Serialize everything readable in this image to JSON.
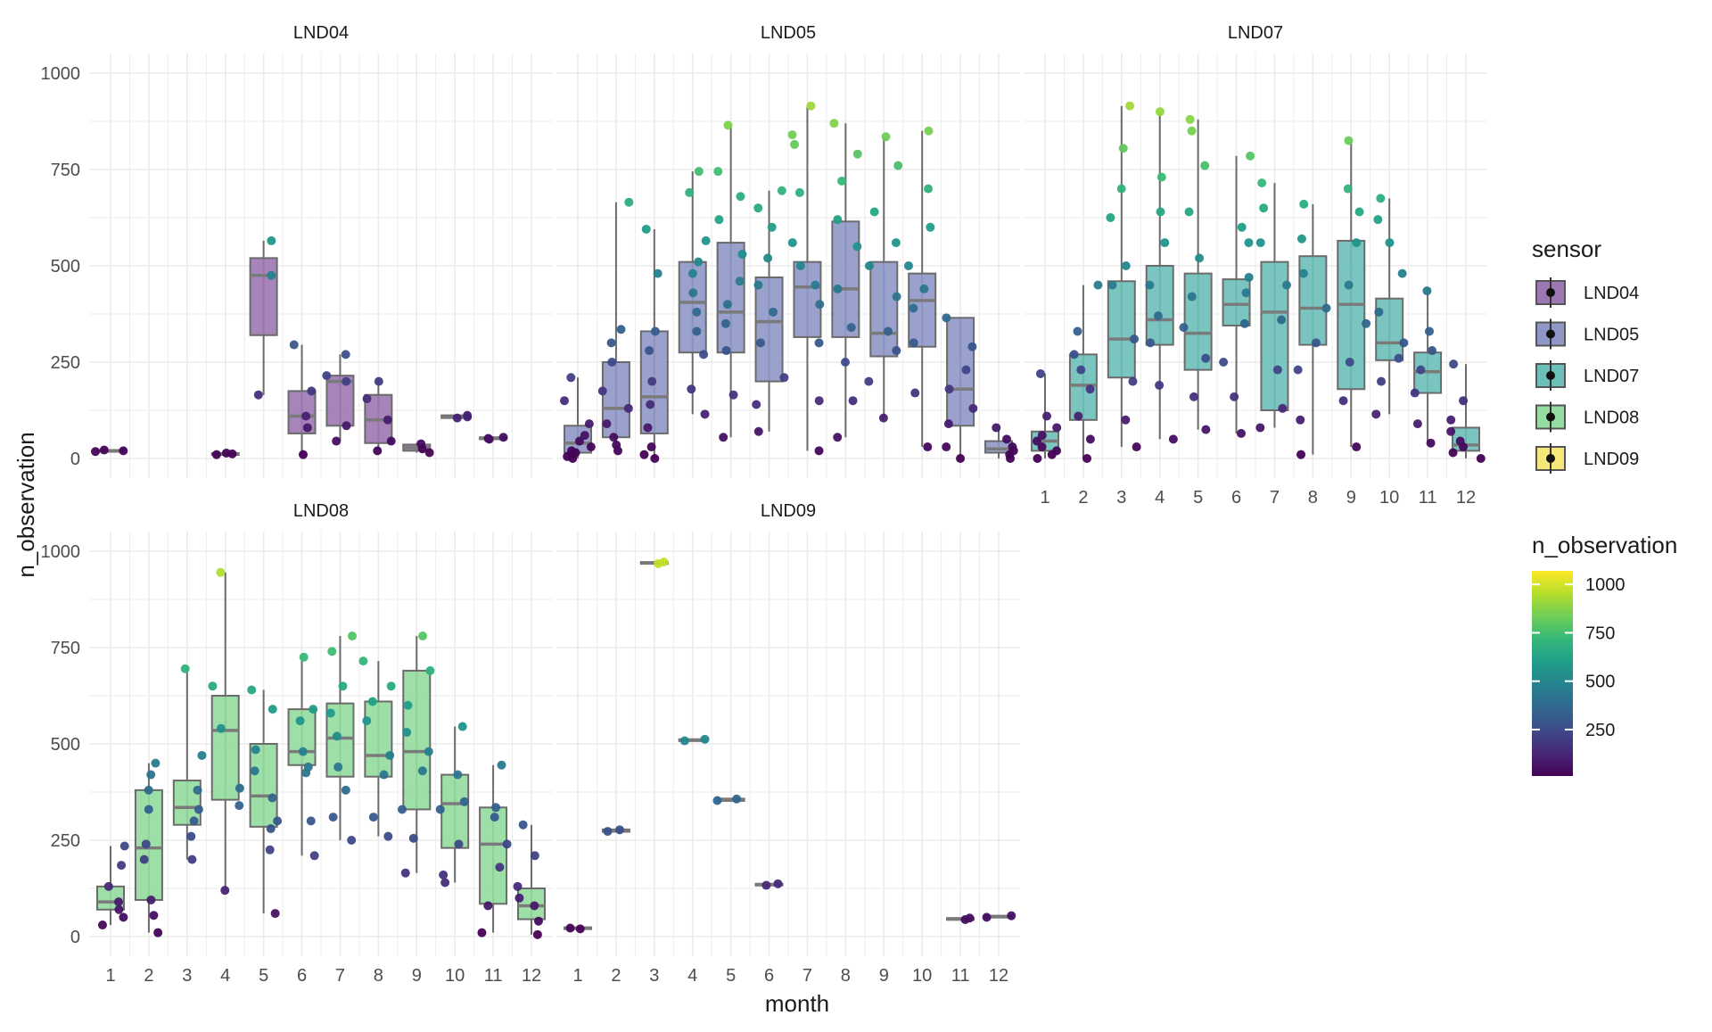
{
  "chart_data": {
    "type": "box",
    "xlabel": "month",
    "ylabel": "n_observation",
    "categories": [
      "1",
      "2",
      "3",
      "4",
      "5",
      "6",
      "7",
      "8",
      "9",
      "10",
      "11",
      "12"
    ],
    "ylim": [
      0,
      1000
    ],
    "yticks": [
      0,
      250,
      500,
      750,
      1000
    ],
    "legend_sensor": {
      "title": "sensor",
      "items": [
        {
          "name": "LND04",
          "color": "#9d77b3"
        },
        {
          "name": "LND05",
          "color": "#8e97c6"
        },
        {
          "name": "LND07",
          "color": "#6cbfb8"
        },
        {
          "name": "LND08",
          "color": "#94dc9f"
        },
        {
          "name": "LND09",
          "color": "#f5e77a"
        }
      ]
    },
    "legend_color": {
      "title": "n_observation",
      "ticks": [
        250,
        500,
        750,
        1000
      ],
      "min": 10,
      "max": 1070,
      "colors": [
        "#440154",
        "#482878",
        "#3e4a89",
        "#31688e",
        "#26828e",
        "#1f9e89",
        "#35b779",
        "#6ece58",
        "#b5de2b",
        "#fde725"
      ]
    },
    "panels": [
      {
        "sensor": "LND04",
        "boxes": [
          {
            "month": 1,
            "q1": 18,
            "median": 20,
            "q3": 22,
            "lo": 18,
            "hi": 22,
            "points": [
              18,
              20,
              22
            ]
          },
          {
            "month": 4,
            "q1": 10,
            "median": 12,
            "q3": 14,
            "lo": 10,
            "hi": 14,
            "points": [
              10,
              12,
              14
            ]
          },
          {
            "month": 5,
            "q1": 320,
            "median": 475,
            "q3": 520,
            "lo": 165,
            "hi": 565,
            "points": [
              165,
              475,
              565
            ]
          },
          {
            "month": 6,
            "q1": 65,
            "median": 110,
            "q3": 175,
            "lo": 10,
            "hi": 295,
            "points": [
              10,
              80,
              110,
              175,
              295
            ]
          },
          {
            "month": 7,
            "q1": 85,
            "median": 200,
            "q3": 215,
            "lo": 45,
            "hi": 270,
            "points": [
              45,
              85,
              200,
              215,
              270
            ]
          },
          {
            "month": 8,
            "q1": 40,
            "median": 100,
            "q3": 165,
            "lo": 20,
            "hi": 200,
            "points": [
              20,
              45,
              100,
              155,
              200
            ]
          },
          {
            "month": 9,
            "q1": 20,
            "median": 28,
            "q3": 36,
            "lo": 15,
            "hi": 40,
            "points": [
              15,
              25,
              38
            ]
          },
          {
            "month": 10,
            "q1": 105,
            "median": 108,
            "q3": 112,
            "lo": 105,
            "hi": 112,
            "points": [
              105,
              108,
              112
            ]
          },
          {
            "month": 11,
            "q1": 50,
            "median": 52,
            "q3": 55,
            "lo": 50,
            "hi": 55,
            "points": [
              50,
              52,
              55
            ]
          }
        ]
      },
      {
        "sensor": "LND05",
        "boxes": [
          {
            "month": 1,
            "q1": 15,
            "median": 40,
            "q3": 85,
            "lo": 0,
            "hi": 210,
            "points": [
              0,
              5,
              10,
              15,
              20,
              30,
              45,
              60,
              90,
              150,
              210
            ]
          },
          {
            "month": 2,
            "q1": 55,
            "median": 130,
            "q3": 250,
            "lo": 20,
            "hi": 665,
            "points": [
              20,
              35,
              55,
              90,
              130,
              175,
              250,
              300,
              335,
              665
            ]
          },
          {
            "month": 3,
            "q1": 65,
            "median": 160,
            "q3": 330,
            "lo": 0,
            "hi": 595,
            "points": [
              0,
              10,
              30,
              80,
              140,
              200,
              280,
              330,
              480,
              595
            ]
          },
          {
            "month": 4,
            "q1": 275,
            "median": 405,
            "q3": 510,
            "lo": 115,
            "hi": 745,
            "points": [
              115,
              180,
              270,
              330,
              380,
              430,
              480,
              510,
              565,
              690,
              745
            ]
          },
          {
            "month": 5,
            "q1": 275,
            "median": 380,
            "q3": 560,
            "lo": 55,
            "hi": 865,
            "points": [
              55,
              165,
              280,
              350,
              400,
              460,
              530,
              620,
              680,
              745,
              865
            ]
          },
          {
            "month": 6,
            "q1": 200,
            "median": 355,
            "q3": 470,
            "lo": 70,
            "hi": 695,
            "points": [
              70,
              140,
              210,
              300,
              380,
              450,
              520,
              600,
              650,
              695
            ]
          },
          {
            "month": 7,
            "q1": 315,
            "median": 445,
            "q3": 510,
            "lo": 20,
            "hi": 915,
            "points": [
              20,
              150,
              300,
              400,
              450,
              500,
              560,
              690,
              815,
              840,
              915
            ]
          },
          {
            "month": 8,
            "q1": 315,
            "median": 440,
            "q3": 615,
            "lo": 55,
            "hi": 870,
            "points": [
              55,
              150,
              250,
              340,
              440,
              550,
              620,
              720,
              790,
              870
            ]
          },
          {
            "month": 9,
            "q1": 265,
            "median": 325,
            "q3": 510,
            "lo": 105,
            "hi": 835,
            "points": [
              105,
              200,
              280,
              330,
              420,
              500,
              560,
              640,
              760,
              835
            ]
          },
          {
            "month": 10,
            "q1": 290,
            "median": 410,
            "q3": 480,
            "lo": 30,
            "hi": 850,
            "points": [
              30,
              170,
              300,
              390,
              440,
              500,
              600,
              700,
              850
            ]
          },
          {
            "month": 11,
            "q1": 85,
            "median": 180,
            "q3": 365,
            "lo": 0,
            "hi": 365,
            "points": [
              0,
              30,
              90,
              130,
              180,
              230,
              290,
              365
            ]
          },
          {
            "month": 12,
            "q1": 15,
            "median": 25,
            "q3": 45,
            "lo": 0,
            "hi": 80,
            "points": [
              0,
              10,
              20,
              30,
              50,
              80
            ]
          }
        ]
      },
      {
        "sensor": "LND07",
        "boxes": [
          {
            "month": 1,
            "q1": 20,
            "median": 45,
            "q3": 70,
            "lo": 0,
            "hi": 220,
            "points": [
              0,
              10,
              20,
              30,
              45,
              60,
              80,
              110,
              220
            ]
          },
          {
            "month": 2,
            "q1": 100,
            "median": 190,
            "q3": 270,
            "lo": 0,
            "hi": 450,
            "points": [
              0,
              50,
              110,
              180,
              230,
              270,
              330,
              450
            ]
          },
          {
            "month": 3,
            "q1": 210,
            "median": 310,
            "q3": 460,
            "lo": 30,
            "hi": 915,
            "points": [
              30,
              100,
              200,
              310,
              450,
              500,
              625,
              700,
              805,
              915
            ]
          },
          {
            "month": 4,
            "q1": 295,
            "median": 360,
            "q3": 500,
            "lo": 50,
            "hi": 900,
            "points": [
              50,
              190,
              300,
              370,
              450,
              560,
              640,
              730,
              900
            ]
          },
          {
            "month": 5,
            "q1": 230,
            "median": 325,
            "q3": 480,
            "lo": 75,
            "hi": 880,
            "points": [
              75,
              160,
              260,
              340,
              420,
              520,
              640,
              760,
              850,
              880
            ]
          },
          {
            "month": 6,
            "q1": 345,
            "median": 400,
            "q3": 465,
            "lo": 65,
            "hi": 785,
            "points": [
              65,
              160,
              250,
              350,
              430,
              470,
              560,
              600,
              785
            ]
          },
          {
            "month": 7,
            "q1": 125,
            "median": 380,
            "q3": 510,
            "lo": 80,
            "hi": 715,
            "points": [
              80,
              130,
              230,
              360,
              450,
              560,
              650,
              715
            ]
          },
          {
            "month": 8,
            "q1": 295,
            "median": 390,
            "q3": 525,
            "lo": 10,
            "hi": 660,
            "points": [
              10,
              100,
              230,
              300,
              390,
              480,
              570,
              660
            ]
          },
          {
            "month": 9,
            "q1": 180,
            "median": 400,
            "q3": 565,
            "lo": 30,
            "hi": 825,
            "points": [
              30,
              150,
              250,
              350,
              450,
              560,
              640,
              700,
              825
            ]
          },
          {
            "month": 10,
            "q1": 255,
            "median": 300,
            "q3": 415,
            "lo": 115,
            "hi": 675,
            "points": [
              115,
              200,
              260,
              300,
              380,
              480,
              560,
              620,
              675
            ]
          },
          {
            "month": 11,
            "q1": 170,
            "median": 225,
            "q3": 275,
            "lo": 40,
            "hi": 435,
            "points": [
              40,
              90,
              170,
              230,
              280,
              330,
              435
            ]
          },
          {
            "month": 12,
            "q1": 20,
            "median": 35,
            "q3": 80,
            "lo": 0,
            "hi": 245,
            "points": [
              0,
              15,
              30,
              45,
              70,
              100,
              150,
              245
            ]
          }
        ]
      },
      {
        "sensor": "LND08",
        "boxes": [
          {
            "month": 1,
            "q1": 70,
            "median": 90,
            "q3": 130,
            "lo": 30,
            "hi": 235,
            "points": [
              30,
              50,
              70,
              90,
              130,
              185,
              235
            ]
          },
          {
            "month": 2,
            "q1": 95,
            "median": 230,
            "q3": 380,
            "lo": 10,
            "hi": 450,
            "points": [
              10,
              55,
              95,
              200,
              240,
              330,
              380,
              420,
              450
            ]
          },
          {
            "month": 3,
            "q1": 290,
            "median": 335,
            "q3": 405,
            "lo": 200,
            "hi": 695,
            "points": [
              200,
              260,
              300,
              330,
              380,
              470,
              695
            ]
          },
          {
            "month": 4,
            "q1": 355,
            "median": 535,
            "q3": 625,
            "lo": 120,
            "hi": 945,
            "points": [
              120,
              340,
              385,
              540,
              650,
              945
            ]
          },
          {
            "month": 5,
            "q1": 285,
            "median": 365,
            "q3": 500,
            "lo": 60,
            "hi": 640,
            "points": [
              60,
              225,
              280,
              300,
              360,
              430,
              485,
              590,
              640
            ]
          },
          {
            "month": 6,
            "q1": 445,
            "median": 480,
            "q3": 590,
            "lo": 210,
            "hi": 725,
            "points": [
              210,
              300,
              425,
              440,
              480,
              560,
              590,
              725
            ]
          },
          {
            "month": 7,
            "q1": 415,
            "median": 515,
            "q3": 605,
            "lo": 250,
            "hi": 780,
            "points": [
              250,
              310,
              380,
              440,
              520,
              580,
              650,
              740,
              780
            ]
          },
          {
            "month": 8,
            "q1": 415,
            "median": 470,
            "q3": 610,
            "lo": 260,
            "hi": 715,
            "points": [
              260,
              310,
              420,
              470,
              560,
              610,
              650,
              715
            ]
          },
          {
            "month": 9,
            "q1": 330,
            "median": 480,
            "q3": 690,
            "lo": 165,
            "hi": 780,
            "points": [
              165,
              255,
              330,
              430,
              480,
              530,
              600,
              690,
              780
            ]
          },
          {
            "month": 10,
            "q1": 230,
            "median": 345,
            "q3": 420,
            "lo": 140,
            "hi": 545,
            "points": [
              140,
              160,
              240,
              330,
              350,
              420,
              545
            ]
          },
          {
            "month": 11,
            "q1": 85,
            "median": 240,
            "q3": 335,
            "lo": 10,
            "hi": 445,
            "points": [
              10,
              80,
              180,
              240,
              310,
              335,
              445
            ]
          },
          {
            "month": 12,
            "q1": 45,
            "median": 80,
            "q3": 125,
            "lo": 5,
            "hi": 290,
            "points": [
              5,
              40,
              80,
              100,
              130,
              210,
              290
            ]
          }
        ]
      },
      {
        "sensor": "LND09",
        "boxes": [
          {
            "month": 1,
            "q1": 20,
            "median": 22,
            "q3": 24,
            "lo": 20,
            "hi": 24,
            "points": [
              20,
              22
            ]
          },
          {
            "month": 2,
            "q1": 272,
            "median": 275,
            "q3": 278,
            "lo": 272,
            "hi": 278,
            "points": [
              273,
              277
            ]
          },
          {
            "month": 3,
            "q1": 968,
            "median": 970,
            "q3": 972,
            "lo": 968,
            "hi": 972,
            "points": [
              968,
              972
            ]
          },
          {
            "month": 4,
            "q1": 508,
            "median": 510,
            "q3": 512,
            "lo": 508,
            "hi": 512,
            "points": [
              508,
              512
            ]
          },
          {
            "month": 5,
            "q1": 352,
            "median": 355,
            "q3": 358,
            "lo": 352,
            "hi": 358,
            "points": [
              353,
              357
            ]
          },
          {
            "month": 6,
            "q1": 133,
            "median": 135,
            "q3": 137,
            "lo": 133,
            "hi": 137,
            "points": [
              133,
              137
            ]
          },
          {
            "month": 11,
            "q1": 44,
            "median": 46,
            "q3": 48,
            "lo": 44,
            "hi": 48,
            "points": [
              44,
              48
            ]
          },
          {
            "month": 12,
            "q1": 50,
            "median": 52,
            "q3": 54,
            "lo": 50,
            "hi": 54,
            "points": [
              50,
              54
            ]
          }
        ]
      }
    ]
  }
}
